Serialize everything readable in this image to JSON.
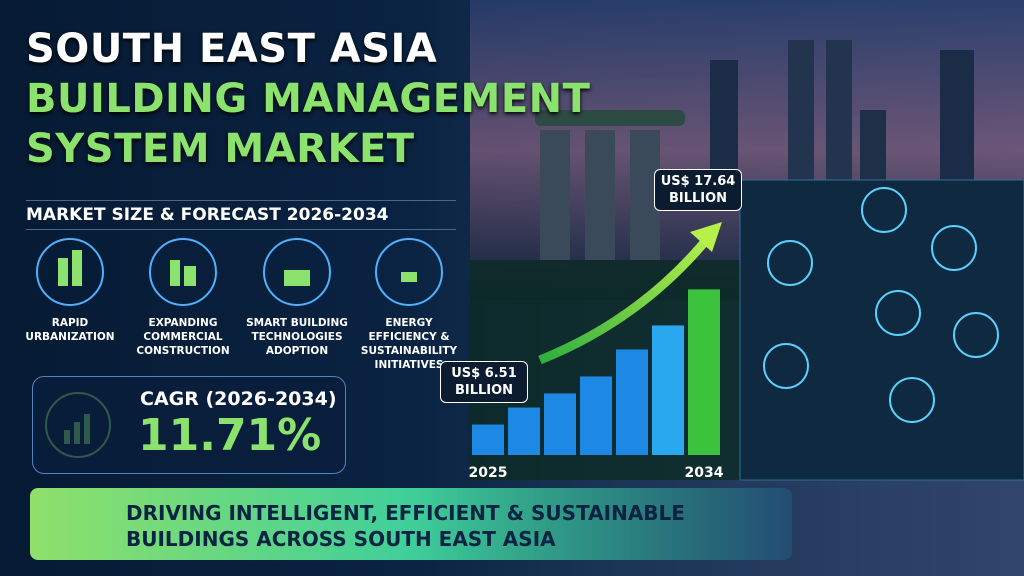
{
  "title_lines": [
    "SOUTH EAST ASIA",
    "BUILDING MANAGEMENT",
    "SYSTEM MARKET"
  ],
  "subtitle": "MARKET SIZE & FORECAST 2026-2034",
  "drivers": [
    "RAPID URBANIZATION",
    "EXPANDING COMMERCIAL CONSTRUCTION",
    "SMART BUILDING TECHNOLOGIES ADOPTION",
    "ENERGY EFFICIENCY & SUSTAINABILITY INITIATIVES"
  ],
  "cagr": {
    "label": "CAGR (2026-2034)",
    "value": "11.71%"
  },
  "chart_data": {
    "type": "bar",
    "categories": [
      "2025",
      null,
      null,
      null,
      null,
      null,
      "2034"
    ],
    "values": [
      6.51,
      7.91,
      9.07,
      10.47,
      12.69,
      14.67,
      17.64
    ],
    "value_labels": [
      "US$ 6.51 BILLION",
      null,
      null,
      null,
      null,
      null,
      "US$ 17.64 BILLION"
    ],
    "colors": [
      "#1e88e5",
      "#1e88e5",
      "#1e88e5",
      "#1e88e5",
      "#1e88e5",
      "#29a8f0",
      "#3cc23c"
    ],
    "ylim": [
      4,
      18
    ]
  },
  "banner": "DRIVING INTELLIGENT, EFFICIENT & SUSTAINABLE BUILDINGS ACROSS SOUTH EAST ASIA"
}
